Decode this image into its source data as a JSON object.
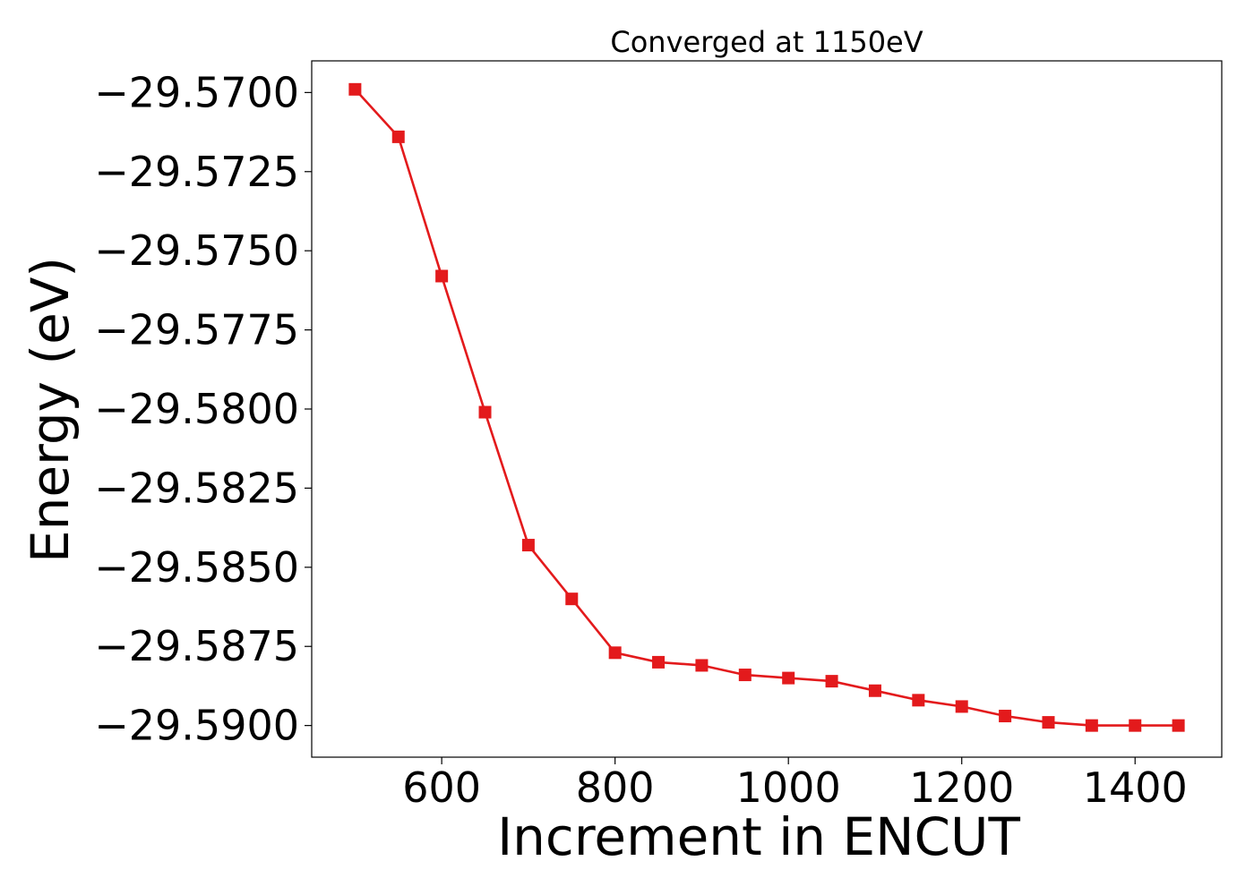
{
  "chart_data": {
    "type": "line",
    "title": "Converged at 1150eV",
    "xlabel": "Increment in ENCUT",
    "ylabel": "Energy (eV)",
    "xlim": [
      450,
      1500
    ],
    "ylim": [
      -29.591,
      -29.569
    ],
    "xticks": [
      600,
      800,
      1000,
      1200,
      1400
    ],
    "yticks": [
      -29.57,
      -29.5725,
      -29.575,
      -29.5775,
      -29.58,
      -29.5825,
      -29.585,
      -29.5875,
      -29.59
    ],
    "ytick_labels": [
      "−29.5700",
      "−29.5725",
      "−29.5750",
      "−29.5775",
      "−29.5800",
      "−29.5825",
      "−29.5850",
      "−29.5875",
      "−29.5900"
    ],
    "grid": false,
    "series": [
      {
        "color": "#e31a1c",
        "marker": "square",
        "x": [
          500,
          550,
          600,
          650,
          700,
          750,
          800,
          850,
          900,
          950,
          1000,
          1050,
          1100,
          1150,
          1200,
          1250,
          1300,
          1350,
          1400,
          1450
        ],
        "y": [
          -29.5699,
          -29.5714,
          -29.5758,
          -29.5801,
          -29.5843,
          -29.586,
          -29.5877,
          -29.588,
          -29.5881,
          -29.5884,
          -29.5885,
          -29.5886,
          -29.5889,
          -29.5892,
          -29.5894,
          -29.5897,
          -29.5899,
          -29.59,
          -29.59,
          -29.59
        ]
      }
    ]
  }
}
